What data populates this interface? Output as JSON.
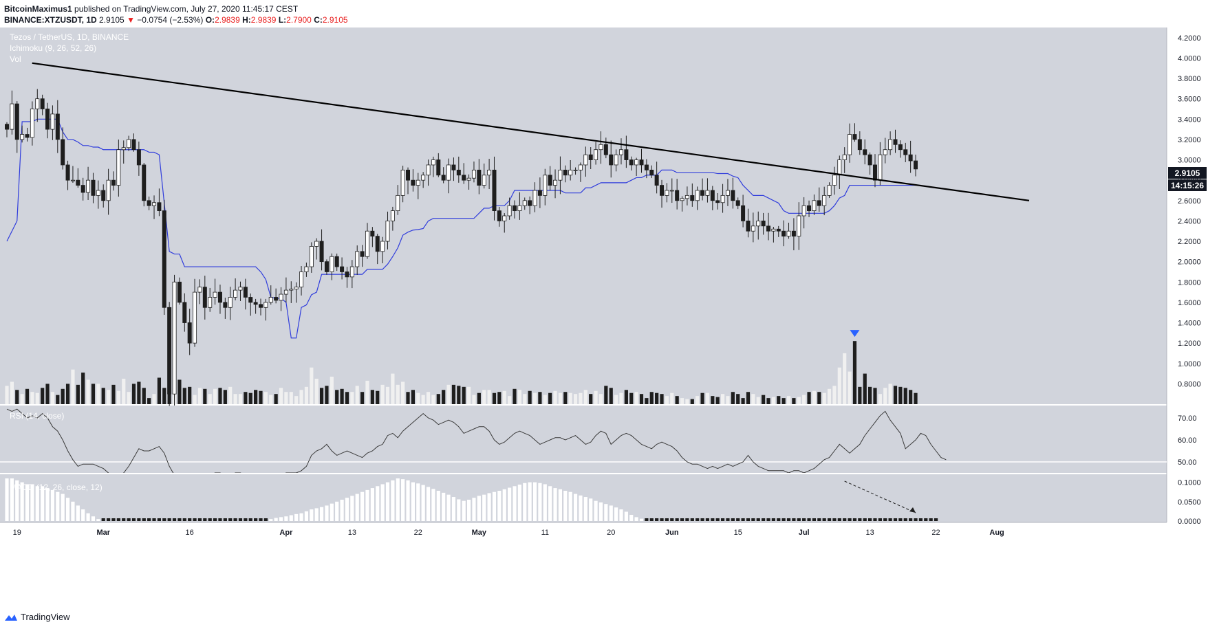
{
  "header": {
    "author": "BitcoinMaximus1",
    "published": "published on TradingView.com, July 27, 2020 11:45:17 CEST",
    "symbol": "BINANCE:XTZUSDT, 1D",
    "last": "2.9105",
    "change": "−0.0754 (−2.53%)",
    "o_label": "O:",
    "o": "2.9839",
    "h_label": "H:",
    "h": "2.9839",
    "l_label": "L:",
    "l": "2.7900",
    "c_label": "C:",
    "c": "2.9105"
  },
  "legend": {
    "pair": "Tezos / TetherUS, 1D, BINANCE",
    "ichimoku": "Ichimoku (9, 26, 52, 26)",
    "vol": "Vol",
    "rsi": "RSI (14, close)",
    "macd": "MACD (12, 26, close, 12)"
  },
  "price_label": "2.9105",
  "countdown": "14:15:26",
  "footer": {
    "brand": "TradingView"
  },
  "colors": {
    "panel_bg": "#d1d4dc",
    "bull": "#ffffff",
    "bear": "#1e1e1e",
    "baseline": "#2f3cdc",
    "trendline": "#000000",
    "marker": "#2962ff"
  },
  "chart_data": [
    {
      "type": "candlestick",
      "title": "Tezos / TetherUS, 1D, BINANCE",
      "x_ticks": [
        "19",
        "Mar",
        "16",
        "Apr",
        "13",
        "22",
        "May",
        "11",
        "20",
        "Jun",
        "15",
        "Jul",
        "13",
        "22",
        "Aug"
      ],
      "y_ticks": [
        "0.8000",
        "1.0000",
        "1.2000",
        "1.4000",
        "1.6000",
        "1.8000",
        "2.0000",
        "2.2000",
        "2.4000",
        "2.6000",
        "2.8000",
        "3.0000",
        "3.2000",
        "3.4000",
        "3.6000",
        "3.8000",
        "4.0000",
        "4.2000"
      ],
      "ylim": [
        0.6,
        4.3
      ],
      "closes": [
        3.3,
        3.55,
        3.2,
        3.25,
        3.22,
        3.5,
        3.6,
        3.5,
        3.3,
        3.45,
        3.2,
        2.95,
        2.8,
        2.8,
        2.75,
        2.68,
        2.8,
        2.65,
        2.7,
        2.6,
        2.8,
        2.75,
        3.1,
        3.12,
        3.2,
        3.1,
        2.95,
        2.6,
        2.55,
        2.58,
        2.5,
        1.55,
        0.7,
        1.8,
        1.6,
        1.4,
        1.2,
        1.7,
        1.75,
        1.55,
        1.65,
        1.7,
        1.6,
        1.55,
        1.65,
        1.72,
        1.75,
        1.65,
        1.6,
        1.58,
        1.55,
        1.6,
        1.65,
        1.62,
        1.68,
        1.72,
        1.73,
        1.75,
        1.9,
        1.95,
        2.15,
        2.2,
        2.0,
        1.9,
        2.05,
        1.95,
        1.9,
        1.85,
        1.95,
        2.1,
        2.05,
        2.3,
        2.25,
        2.1,
        2.2,
        2.4,
        2.5,
        2.65,
        2.9,
        2.8,
        2.75,
        2.8,
        2.85,
        2.95,
        3.0,
        2.85,
        2.8,
        2.95,
        2.9,
        2.85,
        2.8,
        2.82,
        2.9,
        2.75,
        2.85,
        2.9,
        2.5,
        2.4,
        2.45,
        2.55,
        2.5,
        2.55,
        2.6,
        2.55,
        2.7,
        2.65,
        2.85,
        2.75,
        2.8,
        2.9,
        2.85,
        2.9,
        2.9,
        2.95,
        3.05,
        3.0,
        3.1,
        3.15,
        3.05,
        2.95,
        3.05,
        3.1,
        3.0,
        2.95,
        3.0,
        2.95,
        2.9,
        2.85,
        2.75,
        2.65,
        2.7,
        2.7,
        2.6,
        2.62,
        2.65,
        2.6,
        2.7,
        2.65,
        2.7,
        2.6,
        2.58,
        2.65,
        2.7,
        2.6,
        2.55,
        2.4,
        2.3,
        2.35,
        2.4,
        2.35,
        2.3,
        2.32,
        2.3,
        2.25,
        2.3,
        2.25,
        2.45,
        2.55,
        2.5,
        2.6,
        2.55,
        2.65,
        2.75,
        2.85,
        3.0,
        3.05,
        3.25,
        3.2,
        3.1,
        3.05,
        2.95,
        2.8,
        3.05,
        3.1,
        3.2,
        3.15,
        3.1,
        3.05,
        2.99,
        2.91
      ],
      "volumes": [
        0.9,
        1.1,
        0.7,
        0.5,
        0.75,
        0.6,
        0.55,
        0.8,
        1.0,
        0.6,
        0.45,
        0.75,
        1.0,
        1.7,
        0.95,
        1.55,
        1.2,
        1.0,
        1.0,
        0.8,
        0.7,
        0.95,
        0.65,
        1.25,
        0.6,
        1.0,
        1.1,
        0.8,
        0.3,
        0.5,
        1.3,
        0.8,
        0.9,
        1.1,
        1.2,
        0.8,
        0.85,
        0.45,
        0.8,
        0.75,
        0.5,
        0.75,
        0.8,
        0.7,
        0.85,
        0.5,
        0.5,
        0.6,
        0.55,
        0.7,
        0.65,
        0.6,
        0.45,
        0.5,
        0.8,
        0.6,
        0.6,
        0.4,
        0.7,
        0.85,
        1.8,
        1.25,
        0.8,
        0.9,
        1.35,
        0.7,
        0.75,
        0.6,
        0.6,
        0.9,
        0.6,
        1.15,
        0.7,
        0.65,
        0.95,
        0.85,
        1.5,
        0.95,
        1.1,
        0.6,
        0.7,
        0.55,
        0.45,
        0.6,
        0.45,
        0.5,
        0.7,
        0.95,
        0.95,
        0.9,
        0.85,
        0.85,
        0.45,
        0.55,
        0.7,
        0.7,
        0.55,
        0.6,
        0.65,
        0.4,
        0.75,
        0.7,
        0.5,
        0.65,
        0.55,
        0.6,
        0.45,
        0.55,
        0.65,
        0.55,
        0.6,
        0.55,
        0.5,
        0.55,
        0.7,
        0.5,
        0.65,
        0.5,
        0.9,
        0.8,
        0.45,
        0.55,
        0.7,
        0.55,
        0.6,
        0.5,
        0.3,
        0.6,
        0.55,
        0.5,
        0.4,
        0.55,
        0.4,
        0.3,
        0.25,
        0.25,
        0.4,
        0.55,
        0.55,
        0.4,
        0.35,
        0.5,
        0.4,
        0.6,
        0.5,
        0.3,
        0.6,
        0.5,
        0.35,
        0.45,
        0.3,
        0.35,
        0.4,
        0.3,
        0.4,
        0.3,
        0.35,
        0.45,
        0.6,
        0.65,
        0.6,
        0.55,
        0.75,
        0.9,
        1.8,
        2.5,
        1.6,
        3.1,
        0.85,
        1.5,
        0.85,
        0.8,
        0.5,
        0.8,
        1.0,
        0.9,
        0.85,
        0.8,
        0.7,
        0.55
      ],
      "volume_markers": [
        "▼"
      ],
      "series": [
        {
          "name": "Ichimoku (9, 26, 52, 26)",
          "color": "#2f3cdc"
        }
      ],
      "trendline": {
        "from": [
          "Feb 19",
          3.95
        ],
        "to": [
          "Jul 27",
          2.6
        ]
      }
    },
    {
      "type": "line",
      "title": "RSI (14, close)",
      "y_ticks": [
        "50.00",
        "60.00",
        "70.00"
      ],
      "ylim": [
        45,
        75
      ],
      "guide": 50,
      "values": [
        74,
        73,
        74,
        72,
        70,
        71,
        70,
        72,
        70,
        66,
        64,
        60,
        55,
        51,
        48,
        49,
        49,
        49,
        48,
        47,
        45,
        43,
        43,
        45,
        48,
        52,
        56,
        55,
        55,
        56,
        57,
        54,
        48,
        44,
        42,
        42,
        41,
        43,
        44,
        43,
        44,
        45,
        45,
        44,
        44,
        45,
        45,
        44,
        44,
        43,
        43,
        44,
        44,
        44,
        44,
        45,
        45,
        45,
        46,
        48,
        53,
        55,
        56,
        58,
        55,
        53,
        54,
        55,
        54,
        53,
        52,
        54,
        55,
        57,
        58,
        62,
        63,
        61,
        64,
        66,
        68,
        70,
        72,
        70,
        69,
        67,
        68,
        69,
        68,
        66,
        63,
        64,
        65,
        66,
        66,
        64,
        60,
        58,
        59,
        61,
        63,
        64,
        63,
        62,
        60,
        58,
        59,
        60,
        61,
        61,
        60,
        61,
        62,
        60,
        58,
        59,
        62,
        64,
        63,
        58,
        60,
        62,
        63,
        62,
        60,
        58,
        57,
        56,
        58,
        59,
        58,
        57,
        55,
        52,
        50,
        49,
        49,
        48,
        47,
        48,
        47,
        48,
        49,
        48,
        49,
        50,
        53,
        50,
        48,
        47,
        46,
        46,
        46,
        46,
        45,
        46,
        46,
        45,
        46,
        47,
        49,
        51,
        52,
        55,
        58,
        56,
        54,
        56,
        58,
        62,
        65,
        68,
        71,
        73,
        69,
        66,
        63,
        56,
        58,
        60,
        63,
        62,
        58,
        55,
        52,
        51
      ],
      "color": "#3a3a3a"
    },
    {
      "type": "bar",
      "title": "MACD (12, 26, close, 12)",
      "y_ticks": [
        "0.0000",
        "0.0500",
        "0.1000"
      ],
      "ylim": [
        0,
        0.11
      ],
      "values": [
        0.11,
        0.11,
        0.105,
        0.1,
        0.095,
        0.095,
        0.09,
        0.09,
        0.085,
        0.08,
        0.075,
        0.07,
        0.06,
        0.05,
        0.04,
        0.03,
        0.02,
        0.012,
        0.005,
        0.002,
        0.002,
        0.002,
        0.002,
        0.002,
        0.002,
        0.002,
        0.002,
        0.002,
        0.002,
        0.002,
        0.002,
        0.002,
        0.002,
        0.002,
        0.002,
        0.002,
        0.002,
        0.002,
        0.002,
        0.002,
        0.002,
        0.002,
        0.002,
        0.002,
        0.002,
        0.002,
        0.002,
        0.002,
        0.002,
        0.002,
        0.002,
        0.002,
        0.005,
        0.008,
        0.01,
        0.012,
        0.015,
        0.018,
        0.02,
        0.025,
        0.03,
        0.033,
        0.036,
        0.04,
        0.045,
        0.05,
        0.055,
        0.06,
        0.065,
        0.07,
        0.075,
        0.08,
        0.085,
        0.09,
        0.095,
        0.1,
        0.105,
        0.11,
        0.108,
        0.105,
        0.1,
        0.097,
        0.093,
        0.088,
        0.083,
        0.078,
        0.073,
        0.068,
        0.062,
        0.056,
        0.052,
        0.055,
        0.06,
        0.065,
        0.068,
        0.072,
        0.075,
        0.078,
        0.082,
        0.086,
        0.09,
        0.094,
        0.098,
        0.1,
        0.1,
        0.098,
        0.095,
        0.09,
        0.085,
        0.082,
        0.078,
        0.075,
        0.07,
        0.066,
        0.062,
        0.058,
        0.052,
        0.048,
        0.044,
        0.04,
        0.035,
        0.03,
        0.024,
        0.016,
        0.01,
        0.006,
        0.003,
        0.002,
        0.002,
        0.002,
        0.002,
        0.002,
        0.002,
        0.002,
        0.002,
        0.002,
        0.002,
        0.002,
        0.002,
        0.002,
        0.002,
        0.002,
        0.002,
        0.002,
        0.002,
        0.002,
        0.002,
        0.002,
        0.002,
        0.002,
        0.002,
        0.002,
        0.002,
        0.002,
        0.002,
        0.002,
        0.002,
        0.002,
        0.002,
        0.002,
        0.002,
        0.002,
        0.002,
        0.002,
        0.002,
        0.002,
        0.002,
        0.002,
        0.002,
        0.002,
        0.002,
        0.002,
        0.002,
        0.002,
        0.002,
        0.002,
        0.002,
        0.002,
        0.002,
        0.002,
        0.002,
        0.002,
        0.002,
        0.002
      ],
      "color": "#ffffff"
    }
  ]
}
